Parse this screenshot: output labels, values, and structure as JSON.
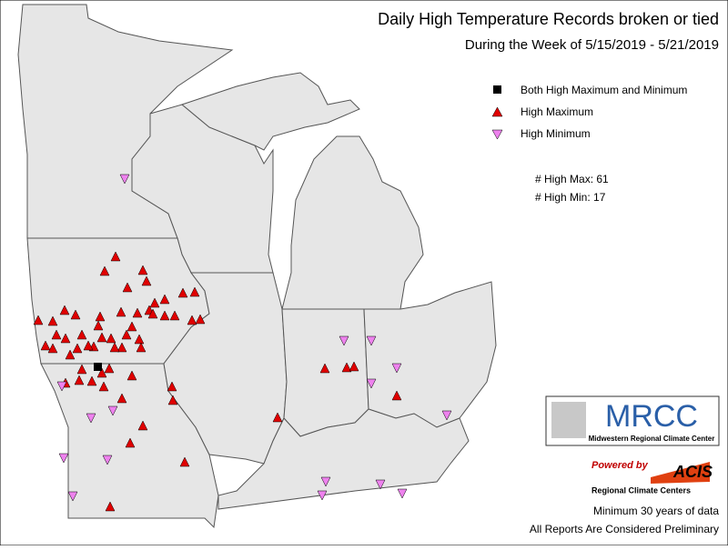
{
  "header": {
    "title": "Daily High Temperature Records broken or tied",
    "subtitle": "During the Week of 5/15/2019 - 5/21/2019"
  },
  "legend": {
    "items": [
      "Both High Maximum and Minimum",
      "High Maximum",
      "High Minimum"
    ]
  },
  "counts": {
    "high_max": "# High Max: 61",
    "high_min": "# High Min: 17"
  },
  "logos": {
    "mrcc": "MRCC",
    "mrcc_name": "Midwestern Regional Climate Center",
    "powered_by": "Powered by",
    "acis": "ACIS",
    "rcc": "Regional Climate Centers"
  },
  "footer": {
    "note": "Minimum 30 years of data",
    "disclaimer": "All Reports Are Considered Preliminary"
  }
}
